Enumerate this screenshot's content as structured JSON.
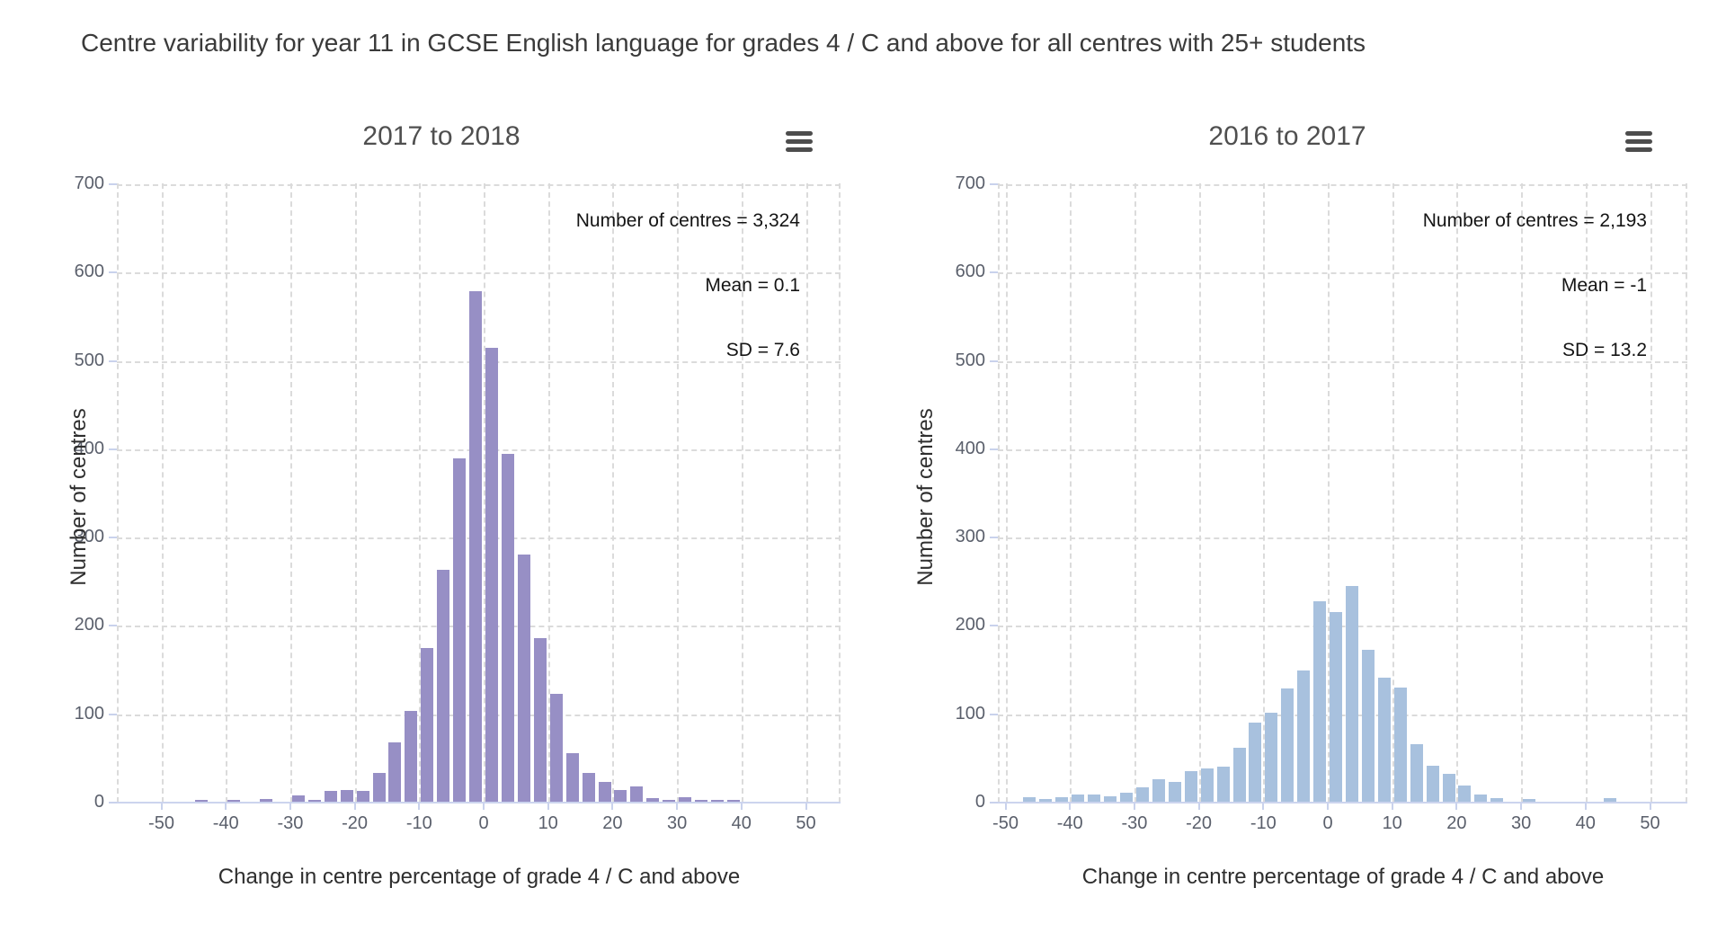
{
  "page_title": "Centre variability for year 11 in GCSE English language for grades 4 / C and above for all centres with 25+ students",
  "colors": {
    "left_bar": "#978FC5",
    "right_bar": "#A8C1DE",
    "gridline": "#DBDBDB",
    "axis_line": "#CCD4EE",
    "tick_label": "#5A5F6B",
    "panel_title": "#4F4F4F",
    "annotation_text": "#141414",
    "menu_icon": "#4D4D4D"
  },
  "menu_icon_name": "hamburger-menu-icon",
  "chart_data": [
    {
      "type": "bar",
      "title": "2017 to 2018",
      "xlabel": "Change in centre percentage of grade 4 / C and above",
      "ylabel": "Number of centres",
      "annotations": [
        "Number of centres = 3,324",
        "Mean = 0.1",
        "SD = 7.6"
      ],
      "stats": {
        "number_of_centres": "3,324",
        "mean": "0.1",
        "sd": "7.6"
      },
      "x_ticks": [
        -50,
        -40,
        -30,
        -20,
        -10,
        0,
        10,
        20,
        30,
        40,
        50
      ],
      "y_ticks": [
        0,
        100,
        200,
        300,
        400,
        500,
        600,
        700
      ],
      "xlim": [
        -55,
        55
      ],
      "ylim": [
        0,
        700
      ],
      "grid": "dashed",
      "legend": "none",
      "bin_width": 2.5,
      "bar_color": "#978FC5",
      "bin_centers": [
        -43.75,
        -38.75,
        -33.75,
        -28.75,
        -26.25,
        -23.75,
        -21.25,
        -18.75,
        -16.25,
        -13.75,
        -11.25,
        -8.75,
        -6.25,
        -3.75,
        -1.25,
        1.25,
        3.75,
        6.25,
        8.75,
        11.25,
        13.75,
        16.25,
        18.75,
        21.25,
        23.75,
        26.25,
        28.75,
        31.25,
        33.75,
        36.25,
        38.75
      ],
      "values": [
        1,
        2,
        3,
        7,
        2,
        12,
        13,
        12,
        33,
        67,
        103,
        174,
        262,
        389,
        578,
        514,
        394,
        280,
        185,
        122,
        55,
        33,
        22,
        13,
        17,
        4,
        2,
        5,
        2,
        1,
        2
      ]
    },
    {
      "type": "bar",
      "title": "2016 to 2017",
      "xlabel": "Change in centre percentage of grade 4 / C and above",
      "ylabel": "Number of centres",
      "annotations": [
        "Number of centres = 2,193",
        "Mean = -1",
        "SD = 13.2"
      ],
      "stats": {
        "number_of_centres": "2,193",
        "mean": "-1",
        "sd": "13.2"
      },
      "x_ticks": [
        -50,
        -40,
        -30,
        -20,
        -10,
        0,
        10,
        20,
        30,
        40,
        50
      ],
      "y_ticks": [
        0,
        100,
        200,
        300,
        400,
        500,
        600,
        700
      ],
      "xlim": [
        -55,
        55
      ],
      "ylim": [
        0,
        700
      ],
      "grid": "dashed",
      "legend": "none",
      "bin_width": 2.5,
      "bar_color": "#A8C1DE",
      "bin_centers": [
        -46.25,
        -43.75,
        -41.25,
        -38.75,
        -36.25,
        -33.75,
        -31.25,
        -28.75,
        -26.25,
        -23.75,
        -21.25,
        -18.75,
        -16.25,
        -13.75,
        -11.25,
        -8.75,
        -6.25,
        -3.75,
        -1.25,
        1.25,
        3.75,
        6.25,
        8.75,
        11.25,
        13.75,
        16.25,
        18.75,
        21.25,
        23.75,
        26.25,
        31.25,
        43.75
      ],
      "values": [
        5,
        3,
        5,
        8,
        8,
        6,
        10,
        16,
        25,
        22,
        35,
        38,
        40,
        61,
        90,
        101,
        128,
        149,
        227,
        215,
        244,
        172,
        140,
        129,
        65,
        41,
        32,
        18,
        8,
        4,
        3,
        4
      ]
    }
  ]
}
